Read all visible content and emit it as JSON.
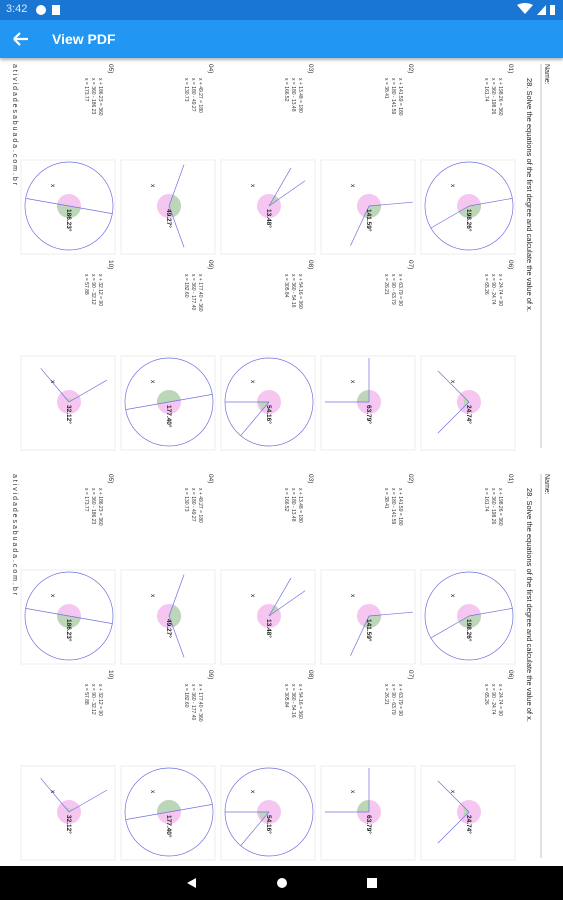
{
  "status_bar": {
    "time": "3:42"
  },
  "app_bar": {
    "title": "View PDF"
  },
  "worksheet": {
    "name_label": "Name:",
    "title": "28. Solve the equations of the first degree and calculate the value of x.",
    "unknown_label": "x",
    "footer": "a t i v i d a d e s a b u a d a . c o m . b r",
    "problems": [
      {
        "label": "01)",
        "lines": [
          "x + 198.26 = 360",
          "x = 360 - 198.26",
          "x = 161.74"
        ],
        "angle": "198.26°"
      },
      {
        "label": "02)",
        "lines": [
          "x + 141.59 = 180",
          "x = 180 - 141.59",
          "x = 38.41"
        ],
        "angle": "141.59°"
      },
      {
        "label": "03)",
        "lines": [
          "x + 13.48 = 180",
          "x = 180 - 13.48",
          "x = 166.52"
        ],
        "angle": "13.48°"
      },
      {
        "label": "04)",
        "lines": [
          "x + 49.27 = 180",
          "x = 180 - 49.27",
          "x = 130.73"
        ],
        "angle": "49.27°"
      },
      {
        "label": "05)",
        "lines": [
          "x + 186.23 = 360",
          "x = 360 - 186.23",
          "x = 173.77"
        ],
        "angle": "186.23°"
      },
      {
        "label": "06)",
        "lines": [
          "x + 24.74 = 90",
          "x = 90 - 24.74",
          "x = 65.26"
        ],
        "angle": "24.74°"
      },
      {
        "label": "07)",
        "lines": [
          "x + 63.79 = 90",
          "x = 90 - 63.79",
          "x = 26.21"
        ],
        "angle": "63.79°"
      },
      {
        "label": "08)",
        "lines": [
          "x + 54.16 = 360",
          "x = 360 - 54.16",
          "x = 305.84"
        ],
        "angle": "54.16°"
      },
      {
        "label": "09)",
        "lines": [
          "x + 177.40 = 360",
          "x = 360 - 177.40",
          "x = 182.60"
        ],
        "angle": "177.40°"
      },
      {
        "label": "10)",
        "lines": [
          "x + 32.12 = 90",
          "x = 90 - 32.12",
          "x = 57.88"
        ],
        "angle": "32.12°"
      }
    ]
  }
}
